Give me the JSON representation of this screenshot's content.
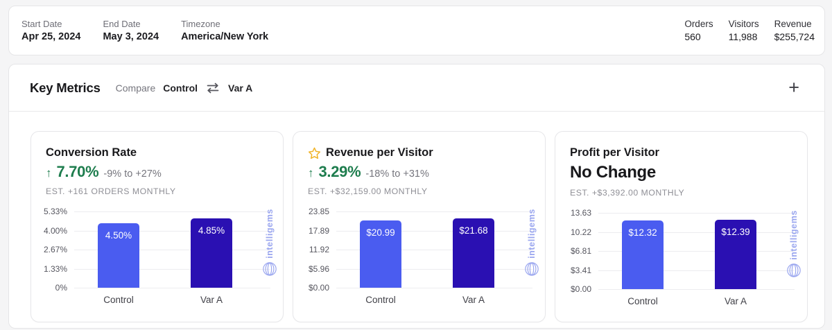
{
  "top_bar": {
    "fields": [
      {
        "label": "Start Date",
        "value": "Apr 25, 2024"
      },
      {
        "label": "End Date",
        "value": "May 3, 2024"
      },
      {
        "label": "Timezone",
        "value": "America/New York"
      }
    ],
    "stats": [
      {
        "label": "Orders",
        "value": "560"
      },
      {
        "label": "Visitors",
        "value": "11,988"
      },
      {
        "label": "Revenue",
        "value": "$255,724"
      }
    ]
  },
  "key_metrics": {
    "title": "Key Metrics",
    "compare_label": "Compare",
    "compare_a": "Control",
    "compare_b": "Var A"
  },
  "icons": {
    "up_arrow_glyph": "↑",
    "plus_glyph": "+",
    "swap_icon": "swap-arrows",
    "star_icon": "star-outline"
  },
  "cards": [
    {
      "title": "Conversion Rate",
      "starred": false,
      "delta_direction": "up",
      "delta": "7.70%",
      "range": "-9% to +27%",
      "est": "EST. +161 ORDERS MONTHLY"
    },
    {
      "title": "Revenue per Visitor",
      "starred": true,
      "delta_direction": "up",
      "delta": "3.29%",
      "range": "-18% to +31%",
      "est": "EST. +$32,159.00 MONTHLY"
    },
    {
      "title": "Profit per Visitor",
      "starred": false,
      "delta_direction": "none",
      "delta": "No Change",
      "range": "",
      "est": "EST. +$3,392.00 MONTHLY"
    }
  ],
  "chart_data": [
    {
      "type": "bar",
      "title": "Conversion Rate",
      "categories": [
        "Control",
        "Var A"
      ],
      "values": [
        4.5,
        4.85
      ],
      "value_labels": [
        "4.50%",
        "4.85%"
      ],
      "ytick_labels": [
        "5.33%",
        "4.00%",
        "2.67%",
        "1.33%",
        "0%"
      ],
      "ylim": [
        0,
        5.33
      ],
      "xlabel": "",
      "ylabel": "",
      "grid": true,
      "legend": false
    },
    {
      "type": "bar",
      "title": "Revenue per Visitor",
      "categories": [
        "Control",
        "Var A"
      ],
      "values": [
        20.99,
        21.68
      ],
      "value_labels": [
        "$20.99",
        "$21.68"
      ],
      "ytick_labels": [
        "23.85",
        "17.89",
        "11.92",
        "$5.96",
        "$0.00"
      ],
      "ylim": [
        0,
        23.85
      ],
      "xlabel": "",
      "ylabel": "",
      "grid": true,
      "legend": false
    },
    {
      "type": "bar",
      "title": "Profit per Visitor",
      "categories": [
        "Control",
        "Var A"
      ],
      "values": [
        12.32,
        12.39
      ],
      "value_labels": [
        "$12.32",
        "$12.39"
      ],
      "ytick_labels": [
        "13.63",
        "10.22",
        "$6.81",
        "$3.41",
        "$0.00"
      ],
      "ylim": [
        0,
        13.63
      ],
      "xlabel": "",
      "ylabel": "",
      "grid": true,
      "legend": false
    }
  ],
  "watermark": {
    "text": "intelligems"
  },
  "colors": {
    "bar_control": "#4a5cf0",
    "bar_variant": "#2a10b2",
    "accent_green": "#1e7d4e",
    "star_yellow": "#f0b429",
    "watermark_blue": "#9aa6ef"
  }
}
